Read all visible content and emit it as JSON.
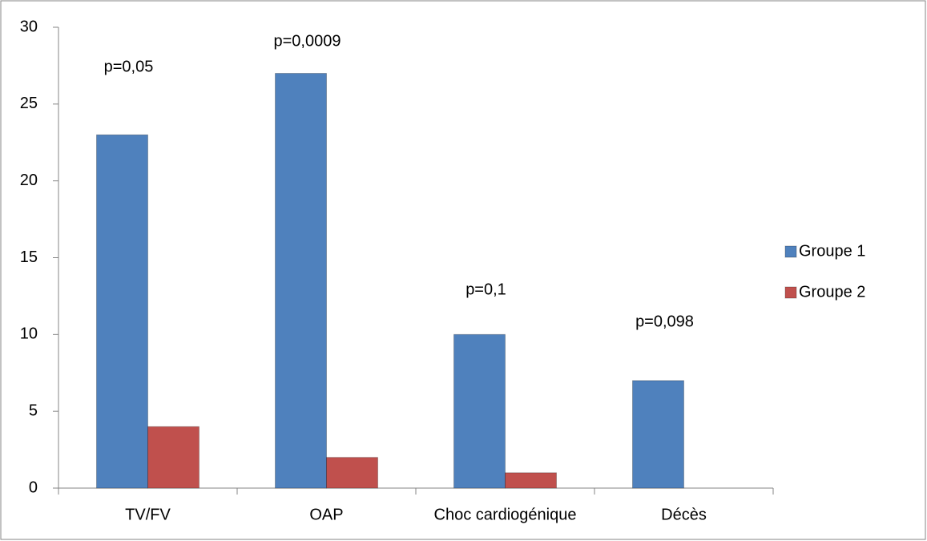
{
  "chart_data": {
    "type": "bar",
    "categories": [
      "TV/FV",
      "OAP",
      "Choc cardiogénique",
      "Décès"
    ],
    "series": [
      {
        "name": "Groupe 1",
        "color": "#4f81bd",
        "values": [
          23,
          27,
          10,
          7
        ]
      },
      {
        "name": "Groupe 2",
        "color": "#c0504d",
        "values": [
          4,
          2,
          1,
          0
        ]
      }
    ],
    "annotations": [
      "p=0,05",
      "p=0,0009",
      "p=0,1",
      "p=0,098"
    ],
    "ylim": [
      0,
      30
    ],
    "yticks": [
      0,
      5,
      10,
      15,
      20,
      25,
      30
    ],
    "legend": "right"
  }
}
